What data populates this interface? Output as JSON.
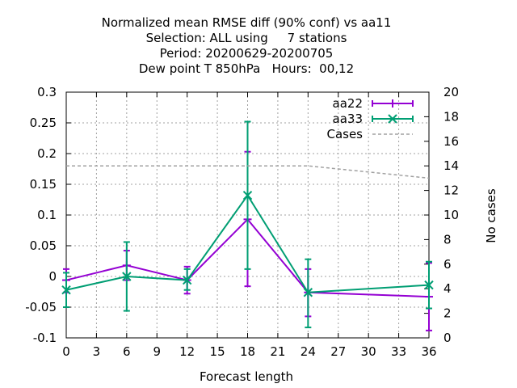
{
  "chart_data": {
    "type": "line",
    "title_lines": [
      "Normalized mean RMSE diff (90% conf) vs aa11",
      "Selection: ALL using     7 stations",
      "Period: 20200629-20200705",
      "Dew point T 850hPa   Hours:  00,12"
    ],
    "xlabel": "Forecast length",
    "ylabel": "",
    "y2label": "No cases",
    "xlim": [
      0,
      36
    ],
    "ylim": [
      -0.1,
      0.3
    ],
    "y2lim": [
      0,
      20
    ],
    "xticks": [
      0,
      3,
      6,
      9,
      12,
      15,
      18,
      21,
      24,
      27,
      30,
      33,
      36
    ],
    "yticks": [
      -0.1,
      -0.05,
      0,
      0.05,
      0.1,
      0.15,
      0.2,
      0.25,
      0.3
    ],
    "ytick_labels": [
      "-0.1",
      "-0.05",
      "0",
      "0.05",
      "0.1",
      "0.15",
      "0.2",
      "0.25",
      "0.3"
    ],
    "y2ticks": [
      0,
      2,
      4,
      6,
      8,
      10,
      12,
      14,
      16,
      18,
      20
    ],
    "grid": true,
    "legend_position": "top-right",
    "series": [
      {
        "name": "aa22",
        "color": "#9400d3",
        "marker": "plus",
        "axis": "y",
        "x": [
          0,
          6,
          12,
          18,
          24,
          36
        ],
        "y": [
          -0.006,
          0.018,
          -0.006,
          0.093,
          -0.026,
          -0.033
        ],
        "err_low": [
          -0.026,
          -0.006,
          -0.028,
          -0.016,
          -0.065,
          -0.088
        ],
        "err_high": [
          0.012,
          0.042,
          0.016,
          0.203,
          0.012,
          0.022
        ]
      },
      {
        "name": "aa33",
        "color": "#009e73",
        "marker": "x",
        "axis": "y",
        "x": [
          0,
          6,
          12,
          18,
          24,
          36
        ],
        "y": [
          -0.022,
          0.0,
          -0.006,
          0.132,
          -0.026,
          -0.014
        ],
        "err_low": [
          -0.05,
          -0.056,
          -0.022,
          0.012,
          -0.083,
          -0.052
        ],
        "err_high": [
          0.006,
          0.056,
          0.012,
          0.252,
          0.028,
          0.024
        ]
      },
      {
        "name": "Cases",
        "color": "#a0a0a0",
        "style": "dashed",
        "axis": "y2",
        "x": [
          0,
          6,
          12,
          18,
          24,
          36
        ],
        "y": [
          14,
          14,
          14,
          14,
          14,
          13
        ]
      }
    ]
  }
}
